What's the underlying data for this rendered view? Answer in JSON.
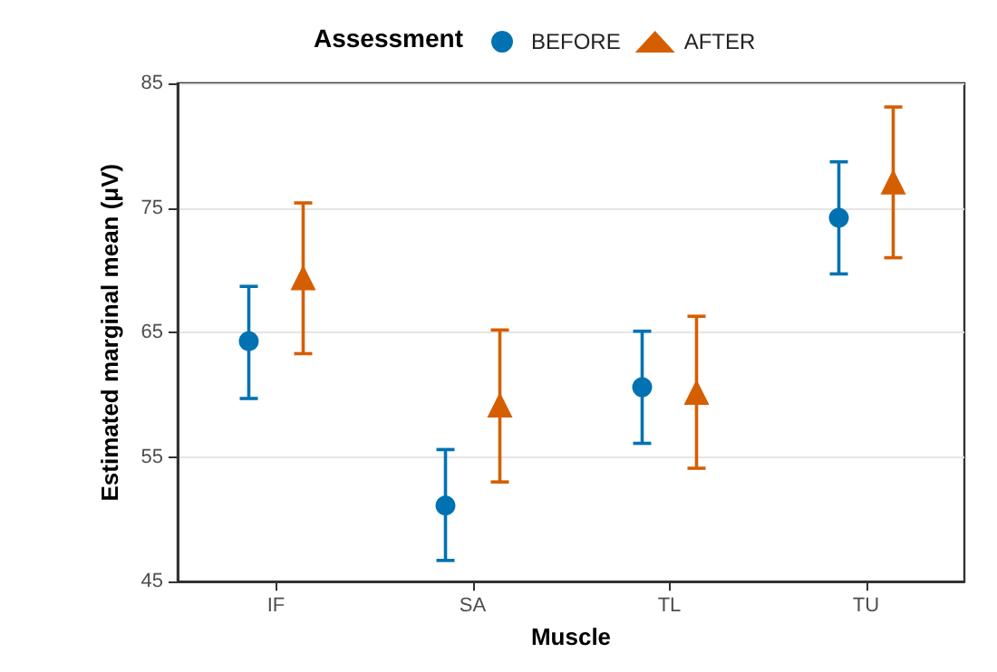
{
  "chart_data": {
    "type": "scatter",
    "xlabel": "Muscle",
    "ylabel": "Estimated marginal mean (μV)",
    "legend_title": "Assessment",
    "legend": "top",
    "grid": "y",
    "categories": [
      "IF",
      "SA",
      "TL",
      "TU"
    ],
    "ylim": [
      45,
      85
    ],
    "yticks": [
      45,
      55,
      65,
      75,
      85
    ],
    "series": [
      {
        "name": "BEFORE",
        "color": "#0072b2",
        "marker": "circle",
        "values": [
          64.3,
          51.1,
          60.6,
          74.2
        ],
        "errors": [
          [
            59.7,
            68.7
          ],
          [
            46.7,
            55.6
          ],
          [
            56.1,
            65.1
          ],
          [
            69.7,
            78.7
          ]
        ]
      },
      {
        "name": "AFTER",
        "color": "#d55e00",
        "marker": "triangle",
        "values": [
          69.4,
          59.2,
          60.2,
          77.1
        ],
        "errors": [
          [
            63.3,
            75.4
          ],
          [
            53.0,
            65.2
          ],
          [
            54.1,
            66.3
          ],
          [
            71.0,
            83.1
          ]
        ]
      }
    ]
  }
}
